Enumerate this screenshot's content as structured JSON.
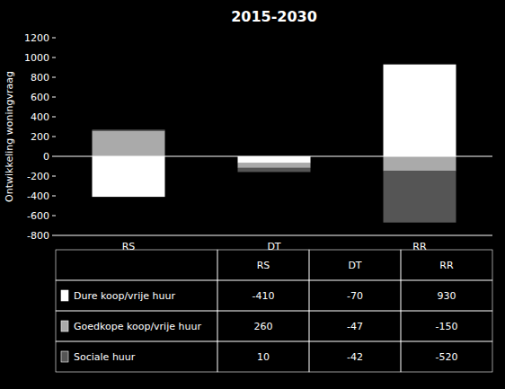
{
  "chart_data": {
    "type": "bar",
    "stacked": true,
    "title": "2015-2030",
    "categories": [
      "RS",
      "DT",
      "RR"
    ],
    "series": [
      {
        "name": "Dure koop/vrije huur",
        "values": [
          -410,
          -70,
          930
        ],
        "color": "#ffffff"
      },
      {
        "name": "Goedkope koop/vrije huur",
        "values": [
          260,
          -47,
          -150
        ],
        "color": "#aaaaaa"
      },
      {
        "name": "Sociale huur",
        "values": [
          10,
          -42,
          -520
        ],
        "color": "#555555"
      }
    ],
    "ylabel": "Ontwikkeling woningvraag",
    "ylim": [
      -800,
      1200
    ],
    "yticks": [
      -800,
      -600,
      -400,
      -200,
      0,
      200,
      400,
      600,
      800,
      1000,
      1200
    ]
  }
}
